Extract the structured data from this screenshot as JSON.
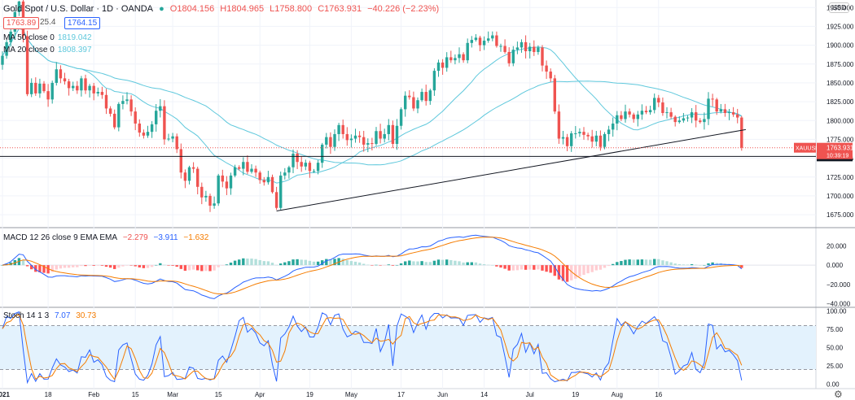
{
  "header": {
    "symbol": "Gold Spot / U.S. Dollar · 1D · OANDA",
    "open": "O1804.156",
    "high": "H1804.965",
    "low": "L1758.800",
    "close": "C1763.931",
    "change": "−40.226 (−2.23%)",
    "bid": "1763.89",
    "spread": "25.4",
    "ask": "1764.15",
    "ma50_label": "MA 50 close 0",
    "ma50_value": "1819.042",
    "ma20_label": "MA 20 close 0",
    "ma20_value": "1808.397",
    "currency": "USD"
  },
  "colors": {
    "up": "#26a69a",
    "down": "#ef5350",
    "ma": "#5fc8dc",
    "macd": "#2962ff",
    "signal": "#f57c00",
    "stoch_k": "#2962ff",
    "stoch_d": "#f57c00",
    "band": "#e3f2fd"
  },
  "chart_data": [
    {
      "type": "candlestick",
      "title": "Gold Spot / U.S. Dollar · 1D · OANDA",
      "ylim": [
        1660,
        1960
      ],
      "yticks": [
        1675,
        1700,
        1725,
        1750,
        1775,
        1800,
        1825,
        1850,
        1875,
        1900,
        1925,
        1950
      ],
      "x_ticks": [
        "2021",
        "18",
        "Feb",
        "15",
        "Mar",
        "15",
        "Apr",
        "19",
        "May",
        "17",
        "Jun",
        "14",
        "Jul",
        "19",
        "Aug",
        "16"
      ],
      "closes": [
        1886,
        1904,
        1918,
        1944,
        1958,
        1912,
        1835,
        1850,
        1836,
        1849,
        1839,
        1828,
        1850,
        1868,
        1856,
        1852,
        1843,
        1846,
        1840,
        1856,
        1840,
        1846,
        1836,
        1838,
        1834,
        1816,
        1809,
        1791,
        1822,
        1826,
        1828,
        1812,
        1796,
        1784,
        1780,
        1785,
        1795,
        1813,
        1819,
        1775,
        1776,
        1779,
        1762,
        1731,
        1720,
        1738,
        1736,
        1712,
        1698,
        1700,
        1687,
        1690,
        1727,
        1719,
        1710,
        1727,
        1738,
        1736,
        1745,
        1732,
        1736,
        1731,
        1721,
        1718,
        1725,
        1705,
        1684,
        1727,
        1731,
        1738,
        1756,
        1745,
        1739,
        1744,
        1733,
        1733,
        1744,
        1768,
        1778,
        1765,
        1782,
        1794,
        1782,
        1774,
        1776,
        1780,
        1778,
        1768,
        1770,
        1769,
        1786,
        1776,
        1782,
        1794,
        1769,
        1793,
        1815,
        1833,
        1831,
        1816,
        1827,
        1838,
        1826,
        1840,
        1866,
        1877,
        1870,
        1884,
        1880,
        1883,
        1888,
        1880,
        1903,
        1907,
        1910,
        1900,
        1906,
        1909,
        1913,
        1899,
        1899,
        1891,
        1876,
        1894,
        1897,
        1904,
        1892,
        1898,
        1891,
        1897,
        1873,
        1865,
        1856,
        1812,
        1776,
        1778,
        1766,
        1783,
        1783,
        1785,
        1781,
        1779,
        1772,
        1780,
        1765,
        1782,
        1788,
        1796,
        1807,
        1802,
        1812,
        1808,
        1802,
        1808,
        1813,
        1811,
        1814,
        1830,
        1824,
        1810,
        1811,
        1805,
        1798,
        1800,
        1803,
        1804,
        1811,
        1800,
        1798,
        1802,
        1829,
        1828,
        1812,
        1815,
        1810,
        1811,
        1808,
        1804,
        1763.931
      ],
      "last_price_label": "XAUUSD",
      "last_price": "1763.931",
      "countdown": "10:39:19",
      "horizontal_level": "1752.416",
      "trendline": {
        "from": [
          66,
          1680
        ],
        "to": [
          179,
          1788
        ]
      }
    },
    {
      "type": "line",
      "title": "MACD 12 26 close 9 EMA EMA",
      "values_label": [
        "−2.279",
        "−3.911",
        "−1.632"
      ],
      "ylim": [
        -42,
        38
      ],
      "yticks": [
        "20.000",
        "0.000",
        "−20.000",
        "−40.000"
      ]
    },
    {
      "type": "line",
      "title": "Stoch 14 1 3",
      "values_label": [
        "7.07",
        "30.73"
      ],
      "ylim": [
        -4,
        104
      ],
      "yticks": [
        "100.00",
        "75.00",
        "50.00",
        "25.00",
        "0.00"
      ]
    }
  ]
}
